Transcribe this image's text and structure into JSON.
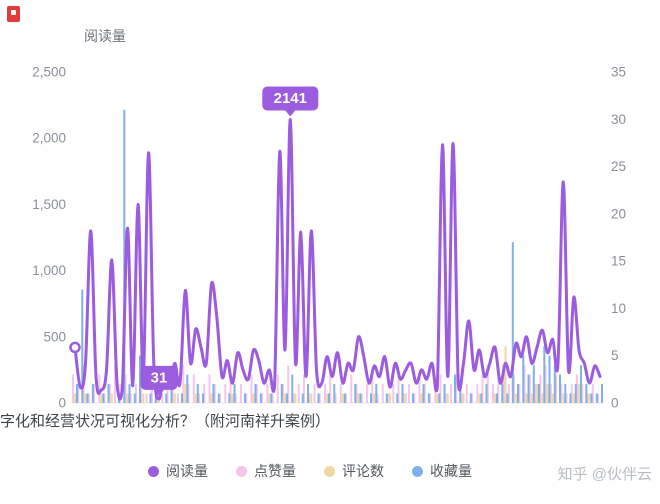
{
  "page": {
    "title_label": "阅读量",
    "caption": "字化和经营状况可视化分析？（附河南祥升案例）",
    "watermark": "知乎 @伙伴云"
  },
  "chart_data": {
    "type": "line+bar",
    "title": "阅读量",
    "left_axis": {
      "max": 2500,
      "ticks": [
        "0",
        "500",
        "1,000",
        "1,500",
        "2,000",
        "2,500"
      ]
    },
    "right_axis": {
      "max": 35,
      "ticks": [
        "0",
        "5",
        "10",
        "15",
        "20",
        "25",
        "30",
        "35"
      ]
    },
    "grid": "off",
    "legend_position": "bottom",
    "legend": [
      {
        "label": "阅读量",
        "color": "#9B5CE0",
        "type": "line"
      },
      {
        "label": "点赞量",
        "color": "#F5C6EA",
        "type": "bar"
      },
      {
        "label": "评论数",
        "color": "#F0D9A0",
        "type": "bar"
      },
      {
        "label": "收藏量",
        "color": "#7EB1E9",
        "type": "bar"
      }
    ],
    "markpoints": {
      "max": {
        "index": 41,
        "label": "2141"
      },
      "min": {
        "index": 16,
        "label": "31"
      }
    },
    "marker_color": "#9B5CE0",
    "series": [
      {
        "name": "阅读量",
        "type": "line",
        "axis": "left",
        "color": "#9B5CE0",
        "values": [
          420,
          120,
          300,
          1300,
          200,
          100,
          250,
          1080,
          150,
          100,
          1320,
          130,
          1500,
          200,
          1890,
          300,
          31,
          250,
          120,
          300,
          150,
          850,
          300,
          560,
          420,
          300,
          900,
          650,
          200,
          320,
          150,
          380,
          250,
          180,
          400,
          320,
          150,
          250,
          120,
          1900,
          400,
          2141,
          300,
          1290,
          200,
          1300,
          250,
          150,
          350,
          200,
          380,
          150,
          300,
          250,
          500,
          350,
          150,
          280,
          200,
          350,
          120,
          300,
          180,
          250,
          300,
          150,
          250,
          180,
          300,
          120,
          1950,
          200,
          1960,
          150,
          300,
          620,
          250,
          400,
          200,
          300,
          420,
          150,
          300,
          200,
          450,
          350,
          500,
          300,
          420,
          550,
          380,
          480,
          300,
          1670,
          250,
          800,
          400,
          300,
          150,
          280,
          200
        ]
      },
      {
        "name": "点赞量",
        "type": "bar",
        "axis": "right",
        "color": "#F5C6EA",
        "values": [
          3,
          2,
          4,
          1,
          2,
          3,
          1,
          2,
          4,
          2,
          3,
          1,
          2,
          2,
          1,
          3,
          2,
          1,
          2,
          3,
          1,
          4,
          2,
          3,
          1,
          2,
          3,
          2,
          1,
          2,
          3,
          1,
          2,
          1,
          3,
          2,
          1,
          2,
          1,
          3,
          2,
          4,
          1,
          2,
          3,
          1,
          2,
          1,
          2,
          3,
          1,
          2,
          1,
          3,
          2,
          1,
          2,
          3,
          1,
          2,
          1,
          2,
          3,
          1,
          2,
          1,
          3,
          2,
          1,
          2,
          3,
          1,
          2,
          3,
          1,
          2,
          1,
          2,
          3,
          4,
          2,
          3,
          4,
          2,
          3,
          2,
          4,
          3,
          2,
          3,
          4,
          2,
          3,
          2,
          1,
          2,
          3,
          2,
          1,
          2,
          1
        ]
      },
      {
        "name": "评论数",
        "type": "bar",
        "axis": "right",
        "color": "#F0D9A0",
        "values": [
          1,
          0,
          1,
          0,
          0,
          1,
          0,
          1,
          0,
          0,
          1,
          0,
          0,
          1,
          0,
          0,
          1,
          0,
          0,
          1,
          0,
          2,
          0,
          1,
          0,
          0,
          1,
          0,
          0,
          0,
          1,
          0,
          0,
          0,
          1,
          0,
          0,
          1,
          0,
          0,
          1,
          0,
          1,
          0,
          0,
          1,
          0,
          0,
          1,
          0,
          0,
          1,
          0,
          0,
          1,
          0,
          0,
          1,
          0,
          0,
          1,
          0,
          0,
          1,
          0,
          0,
          1,
          0,
          0,
          1,
          0,
          1,
          0,
          0,
          1,
          0,
          0,
          1,
          0,
          0,
          1,
          0,
          6,
          0,
          1,
          0,
          1,
          1,
          2,
          1,
          2,
          1,
          0,
          1,
          0,
          1,
          2,
          0,
          1,
          0,
          0
        ]
      },
      {
        "name": "收藏量",
        "type": "bar",
        "axis": "right",
        "color": "#7EB1E9",
        "values": [
          2,
          12,
          1,
          2,
          0,
          1,
          2,
          0,
          1,
          31,
          2,
          1,
          5,
          0,
          1,
          2,
          0,
          1,
          2,
          0,
          1,
          3,
          0,
          2,
          1,
          0,
          2,
          1,
          0,
          1,
          2,
          0,
          1,
          0,
          2,
          1,
          0,
          1,
          0,
          2,
          1,
          3,
          0,
          1,
          2,
          0,
          1,
          0,
          1,
          2,
          0,
          1,
          0,
          2,
          1,
          0,
          1,
          2,
          0,
          1,
          0,
          1,
          2,
          0,
          1,
          0,
          2,
          1,
          0,
          1,
          2,
          0,
          3,
          2,
          0,
          1,
          0,
          1,
          2,
          0,
          1,
          2,
          1,
          17,
          2,
          5,
          3,
          4,
          2,
          6,
          5,
          4,
          3,
          2,
          1,
          2,
          4,
          2,
          1,
          1,
          2
        ]
      }
    ]
  }
}
